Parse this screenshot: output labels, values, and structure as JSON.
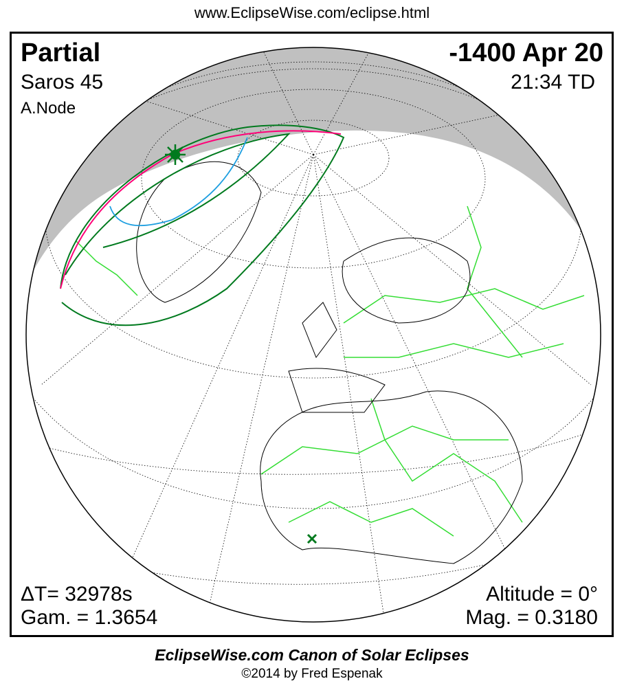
{
  "header": {
    "url": "www.EclipseWise.com/eclipse.html"
  },
  "eclipse": {
    "type": "Partial",
    "date": "-1400 Apr 20",
    "saros": "Saros  45",
    "time": "21:34 TD",
    "node": "A.Node",
    "delta_t": "ΔT=  32978s",
    "gamma": "Gam. = 1.3654",
    "altitude": "Altitude =  0°",
    "magnitude": "Mag. = 0.3180"
  },
  "footer": {
    "canon": "EclipseWise.com Canon of Solar Eclipses",
    "copyright": "©2014 by Fred Espenak"
  },
  "colors": {
    "night": "#c0c0c0",
    "borders": "#33dd33",
    "eclipse_limits": "#007a1e",
    "max_line": "#ff0077",
    "rise_set": "#1e9fe0"
  },
  "markers": {
    "greatest_eclipse": "sun-star-icon",
    "sub_solar": "x-mark-icon"
  }
}
